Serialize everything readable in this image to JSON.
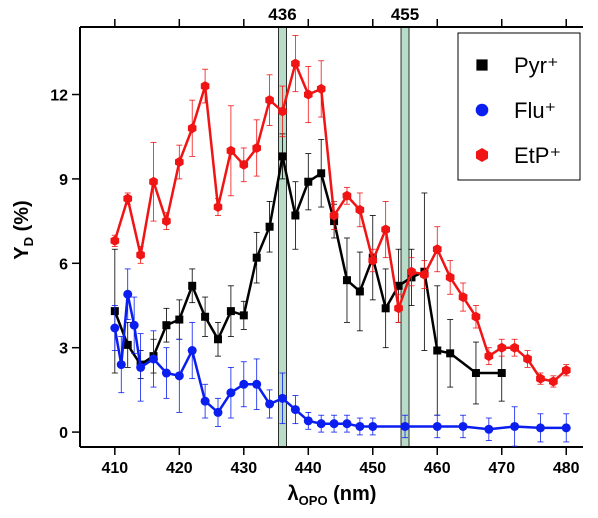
{
  "chart_data": {
    "type": "line",
    "y_label": {
      "main": "Y",
      "sub": "D",
      "unit": " (%)"
    },
    "x_label": {
      "main": "λ",
      "sub": "OPO",
      "unit": " (nm)"
    },
    "xlim": [
      404.6,
      482.6
    ],
    "ylim": [
      -0.53,
      14.4
    ],
    "xticks": [
      410,
      420,
      430,
      440,
      450,
      460,
      470,
      480
    ],
    "yticks": [
      0,
      3,
      6,
      9,
      12
    ],
    "bands": [
      436,
      455
    ],
    "band_color": "#b9dcc9",
    "legend": "top-right",
    "series": [
      {
        "name": "Pyr⁺",
        "color": "#000000",
        "marker": "square",
        "x": [
          410,
          412,
          414,
          416,
          418,
          420,
          422,
          424,
          426,
          428,
          430,
          432,
          434,
          436,
          438,
          440,
          442,
          444,
          446,
          448,
          450,
          452,
          454,
          456,
          458,
          460,
          462,
          466,
          470
        ],
        "values": [
          4.3,
          3.1,
          2.4,
          2.7,
          3.8,
          4.0,
          5.2,
          4.1,
          3.3,
          4.3,
          4.15,
          6.2,
          7.3,
          9.8,
          7.7,
          8.9,
          9.2,
          7.5,
          5.4,
          5.0,
          6.2,
          4.4,
          5.2,
          5.5,
          5.7,
          2.9,
          2.8,
          2.1,
          2.1
        ],
        "errors": [
          2.2,
          0.8,
          0.5,
          0.6,
          0.6,
          0.7,
          0.6,
          0.7,
          0.6,
          0.9,
          0.5,
          0.9,
          0.9,
          0.8,
          1.2,
          1.0,
          1.2,
          0.6,
          1.5,
          1.4,
          1.5,
          1.4,
          1.3,
          1.0,
          2.8,
          2.3,
          1.2,
          1.1,
          1.0
        ]
      },
      {
        "name": "Flu⁺",
        "color": "#0a1ef0",
        "marker": "circle",
        "x": [
          410,
          411,
          412,
          413,
          414,
          416,
          418,
          420,
          422,
          424,
          426,
          428,
          430,
          432,
          434,
          436,
          438,
          440,
          442,
          444,
          446,
          448,
          450,
          455,
          460,
          464,
          468,
          472,
          476,
          480
        ],
        "values": [
          3.7,
          2.4,
          4.9,
          3.8,
          2.3,
          2.6,
          2.1,
          2.0,
          2.9,
          1.1,
          0.7,
          1.4,
          1.7,
          1.7,
          1.0,
          1.2,
          0.8,
          0.4,
          0.3,
          0.3,
          0.3,
          0.2,
          0.2,
          0.2,
          0.2,
          0.2,
          0.1,
          0.2,
          0.15,
          0.15
        ],
        "errors": [
          0.8,
          1.0,
          0.9,
          1.0,
          1.2,
          1.0,
          0.9,
          1.3,
          1.0,
          0.6,
          0.5,
          0.9,
          0.8,
          0.9,
          0.5,
          0.9,
          0.5,
          0.3,
          0.3,
          0.3,
          0.3,
          0.3,
          0.3,
          0.4,
          0.4,
          0.4,
          0.4,
          0.7,
          0.5,
          0.5
        ]
      },
      {
        "name": "EtP⁺",
        "color": "#f01414",
        "marker": "hexagon",
        "x": [
          410,
          412,
          414,
          416,
          418,
          420,
          422,
          424,
          426,
          428,
          430,
          432,
          434,
          436,
          438,
          440,
          442,
          444,
          446,
          448,
          450,
          452,
          454,
          456,
          458,
          460,
          462,
          464,
          466,
          468,
          470,
          472,
          474,
          476,
          478,
          480
        ],
        "values": [
          6.8,
          8.3,
          6.3,
          8.9,
          7.5,
          9.6,
          10.8,
          12.3,
          8.0,
          10.0,
          9.5,
          10.1,
          11.8,
          11.4,
          13.1,
          12.0,
          12.2,
          7.7,
          8.4,
          7.9,
          6.1,
          7.2,
          4.4,
          5.7,
          5.6,
          6.5,
          5.5,
          4.8,
          4.1,
          2.7,
          3.0,
          3.0,
          2.6,
          1.9,
          1.8,
          2.2
        ],
        "errors": [
          0.2,
          0.2,
          0.3,
          1.4,
          0.3,
          0.6,
          1.0,
          0.6,
          0.3,
          1.6,
          0.6,
          1.0,
          0.9,
          0.9,
          1.0,
          1.0,
          1.0,
          0.5,
          0.3,
          0.6,
          0.4,
          1.0,
          0.5,
          0.5,
          0.5,
          0.8,
          0.6,
          0.5,
          0.4,
          0.3,
          0.3,
          0.3,
          0.3,
          0.2,
          0.2,
          0.2
        ]
      }
    ]
  }
}
